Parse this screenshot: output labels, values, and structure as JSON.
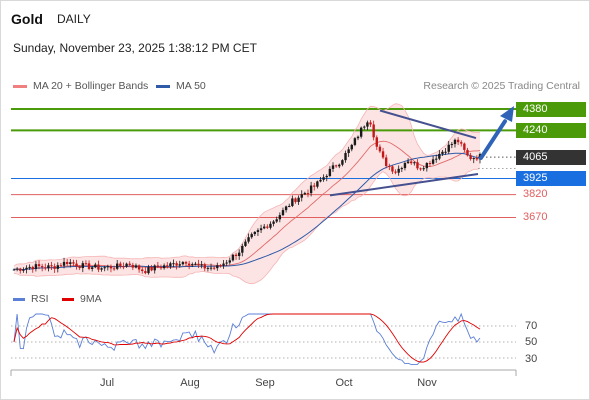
{
  "header": {
    "asset": "Gold",
    "period": "DAILY",
    "timestamp": "Sunday, November 23, 2025 1:38:12 PM CET"
  },
  "legend": {
    "bb_label": "MA 20 + Bollinger Bands",
    "bb_color": "#f08080",
    "ma50_label": "MA 50",
    "ma50_color": "#2e5aa8",
    "credit": "Research © 2025 Trading Central"
  },
  "rsi_legend": {
    "rsi_label": "RSI",
    "rsi_color": "#5b7fd6",
    "ma_label": "9MA",
    "ma_color": "#e00000"
  },
  "chart_data": {
    "type": "candlestick",
    "y_range": [
      3130,
      4570
    ],
    "x_ticks": [
      "Jul",
      "Aug",
      "Sep",
      "Oct",
      "Nov"
    ],
    "levels": [
      {
        "value": 4380,
        "label": "4380",
        "color": "#4a9a0a",
        "kind": "resistance"
      },
      {
        "value": 4240,
        "label": "4240",
        "color": "#4a9a0a",
        "kind": "resistance"
      },
      {
        "value": 4065,
        "label": "4065",
        "color": "#333333",
        "kind": "pivot"
      },
      {
        "value": 3925,
        "label": "3925",
        "color": "#1a6fe0",
        "kind": "support"
      },
      {
        "value": 3820,
        "label": "3820",
        "color": "#e06060",
        "kind": "support"
      },
      {
        "value": 3670,
        "label": "3670",
        "color": "#e06060",
        "kind": "support"
      }
    ],
    "rsi_levels": [
      "70",
      "50",
      "30"
    ],
    "rsi_axis_values": [
      70,
      50,
      30
    ],
    "rsi_range": [
      15,
      90
    ],
    "trend_arrow": "up"
  }
}
